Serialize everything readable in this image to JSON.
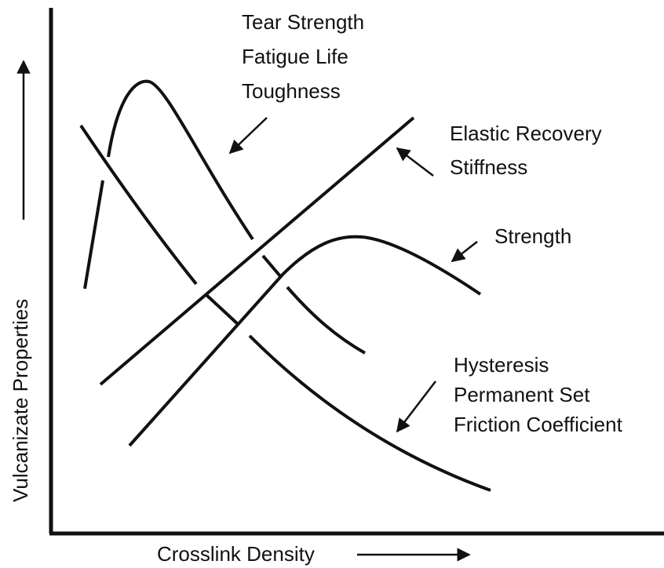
{
  "axes": {
    "x_label": "Crosslink Density",
    "y_label": "Vulcanizate Properties"
  },
  "labels": {
    "tear": [
      "Tear Strength",
      "Fatigue Life",
      "Toughness"
    ],
    "elastic": [
      "Elastic Recovery",
      "Stiffness"
    ],
    "strength": [
      "Strength"
    ],
    "hysteresis": [
      "Hysteresis",
      "Permanent Set",
      "Friction Coefficient"
    ]
  }
}
